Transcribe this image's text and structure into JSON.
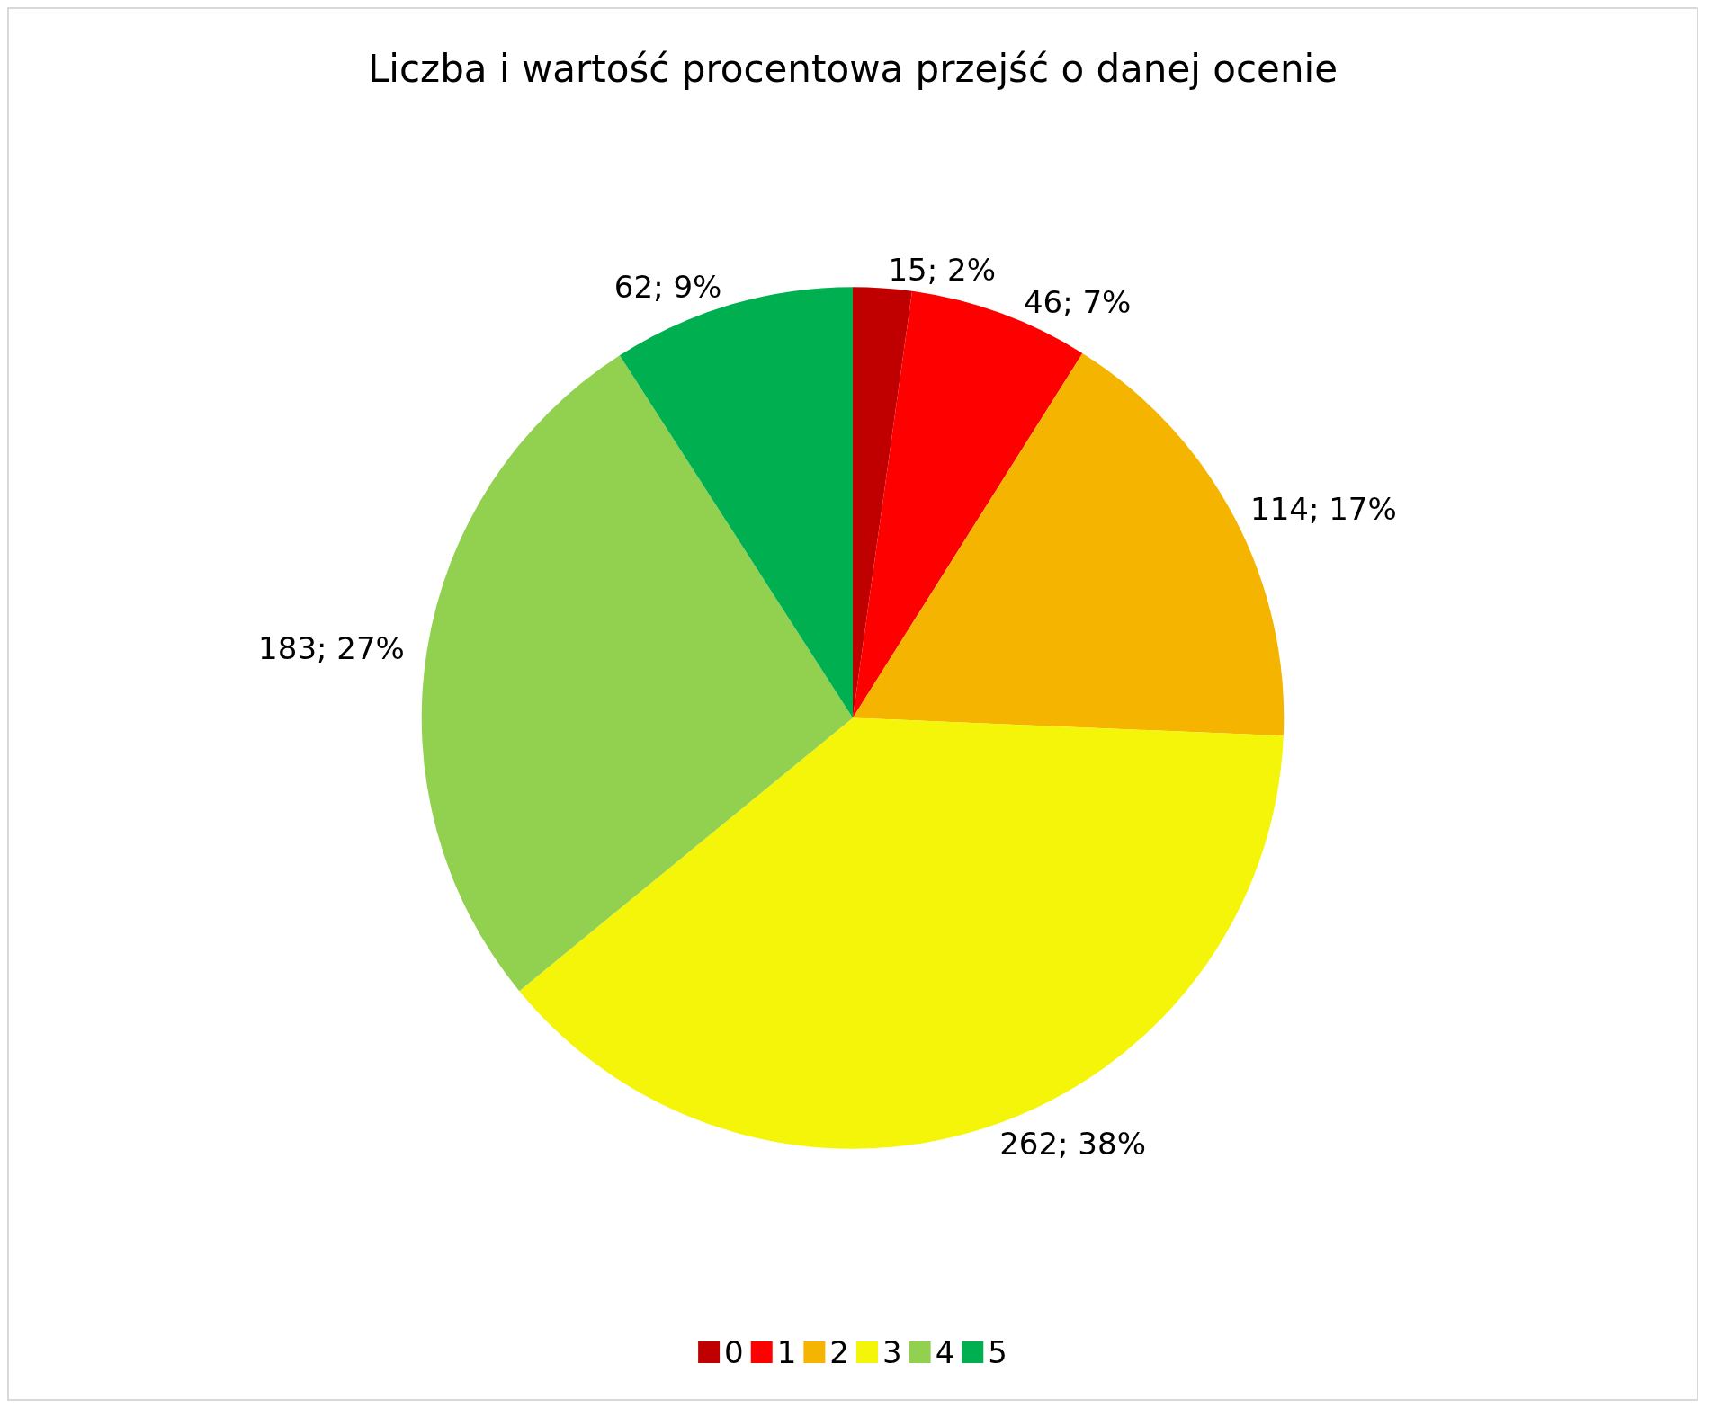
{
  "chart_data": {
    "type": "pie",
    "title": "Liczba i wartość procentowa przejść o danej ocenie",
    "categories": [
      "0",
      "1",
      "2",
      "3",
      "4",
      "5"
    ],
    "values": [
      15,
      46,
      114,
      262,
      183,
      62
    ],
    "value_labels": [
      "15; 2%",
      "46; 7%",
      "114; 17%",
      "262; 38%",
      "183; 27%",
      "62; 9%"
    ],
    "colors": [
      "#c00000",
      "#ff0000",
      "#f5b400",
      "#f5f50a",
      "#92d050",
      "#00b050"
    ],
    "legend": "bottom"
  }
}
